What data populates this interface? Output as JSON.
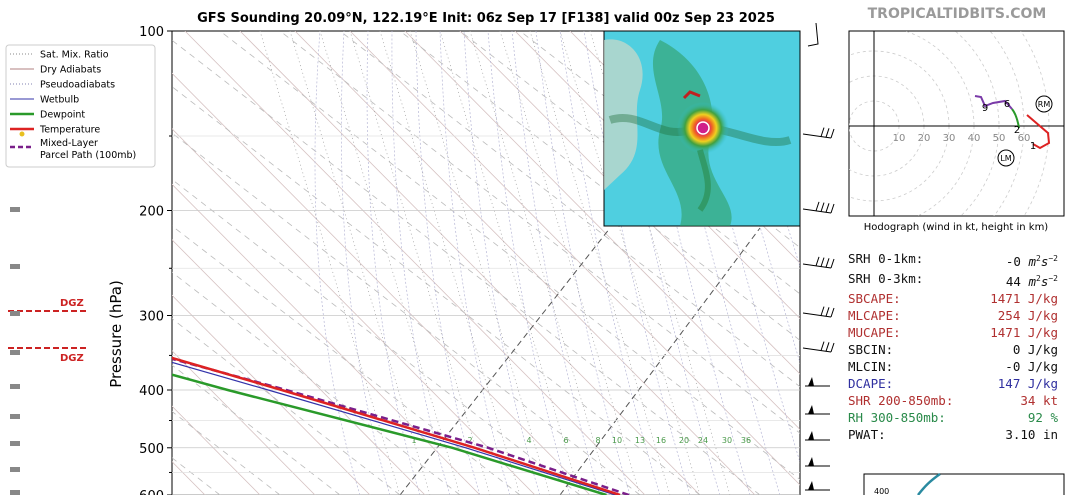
{
  "title": "GFS Sounding 20.09°N, 122.19°E Init: 06z Sep 17 [F138] valid 00z Sep 23 2025",
  "watermark": "TROPICALTIDBITS.COM",
  "chart_data": {
    "type": "skew-t",
    "ylabel": "Pressure (hPa)",
    "y_scale": "log",
    "ylim": [
      600,
      100
    ],
    "y_ticks": [
      100,
      200,
      300,
      400,
      500,
      600
    ],
    "y_tick_labels": [
      "100",
      "200",
      "300",
      "400",
      "500",
      "600"
    ],
    "mixing_ratio_labels": [
      "1",
      "2",
      "4",
      "6",
      "8",
      "10",
      "13",
      "16",
      "20",
      "24",
      "30",
      "36"
    ],
    "dgz_label": "DGZ",
    "legend": [
      {
        "name": "Sat. Mix. Ratio",
        "color": "#888888",
        "style": "dotted"
      },
      {
        "name": "Dry Adiabats",
        "color": "#b08080",
        "style": "solid"
      },
      {
        "name": "Pseudoadiabats",
        "color": "#8080b0",
        "style": "dotted"
      },
      {
        "name": "Wetbulb",
        "color": "#3333aa",
        "style": "solid"
      },
      {
        "name": "Dewpoint",
        "color": "#2a9a2a",
        "style": "solid"
      },
      {
        "name": "Temperature",
        "color": "#dd2222",
        "style": "solid"
      },
      {
        "name": "Mixed-Layer Parcel Path (100mb)",
        "color": "#7a1f8a",
        "style": "dashed"
      }
    ],
    "series": [
      {
        "name": "Temperature",
        "color": "#dd2222",
        "points": [
          [
            600,
            -3.5
          ],
          [
            500,
            -11.5
          ],
          [
            400,
            -23
          ],
          [
            300,
            -38.5
          ],
          [
            250,
            -49
          ],
          [
            200,
            -58
          ],
          [
            150,
            -71
          ],
          [
            130,
            -77
          ],
          [
            100,
            -88
          ]
        ]
      },
      {
        "name": "Dewpoint",
        "color": "#2a9a2a",
        "points": [
          [
            600,
            -5
          ],
          [
            500,
            -14
          ],
          [
            400,
            -29
          ],
          [
            350,
            -37
          ],
          [
            300,
            -47
          ],
          [
            250,
            -58
          ],
          [
            200,
            -69
          ],
          [
            150,
            -82
          ],
          [
            100,
            -98
          ]
        ]
      },
      {
        "name": "Wetbulb",
        "color": "#3333aa",
        "points": [
          [
            600,
            -4
          ],
          [
            500,
            -12.5
          ],
          [
            400,
            -24.5
          ],
          [
            300,
            -40.5
          ],
          [
            250,
            -50.5
          ],
          [
            200,
            -59.5
          ],
          [
            150,
            -72.5
          ]
        ]
      },
      {
        "name": "Mixed-Layer Parcel Path (100mb)",
        "color": "#7a1f8a",
        "points": [
          [
            600,
            -2.5
          ],
          [
            500,
            -10
          ],
          [
            400,
            -22.5
          ],
          [
            300,
            -40
          ],
          [
            250,
            -50.5
          ],
          [
            200,
            -60
          ],
          [
            150,
            -72
          ],
          [
            100,
            -92
          ]
        ]
      }
    ]
  },
  "hodograph": {
    "caption": "Hodograph (wind in kt, height in km)",
    "ring_labels": [
      "10",
      "20",
      "30",
      "40",
      "50",
      "60"
    ],
    "height_labels": [
      "1",
      "2",
      "6",
      "9"
    ],
    "markers": [
      "RM",
      "LM"
    ]
  },
  "parameters": [
    {
      "label": "SRH 0-1km:",
      "value": "-0",
      "unit": "m2s-2",
      "color": "#111111"
    },
    {
      "label": "SRH 0-3km:",
      "value": "44",
      "unit": "m2s-2",
      "color": "#111111"
    },
    {
      "label": "SBCAPE:",
      "value": "1471",
      "unit": "J/kg",
      "color": "#b03030"
    },
    {
      "label": "MLCAPE:",
      "value": "254",
      "unit": "J/kg",
      "color": "#b03030"
    },
    {
      "label": "MUCAPE:",
      "value": "1471",
      "unit": "J/kg",
      "color": "#b03030"
    },
    {
      "label": "SBCIN:",
      "value": "0",
      "unit": "J/kg",
      "color": "#111111"
    },
    {
      "label": "MLCIN:",
      "value": "-0",
      "unit": "J/kg",
      "color": "#111111"
    },
    {
      "label": "DCAPE:",
      "value": "147",
      "unit": "J/kg",
      "color": "#3030a0"
    },
    {
      "label": "SHR 200-850mb:",
      "value": "34",
      "unit": "kt",
      "color": "#b03030"
    },
    {
      "label": "RH 300-850mb:",
      "value": "92",
      "unit": "%",
      "color": "#2a8a4a"
    },
    {
      "label": "PWAT:",
      "value": "3.10",
      "unit": "in",
      "color": "#111111"
    }
  ],
  "inset_axis_label": "400"
}
